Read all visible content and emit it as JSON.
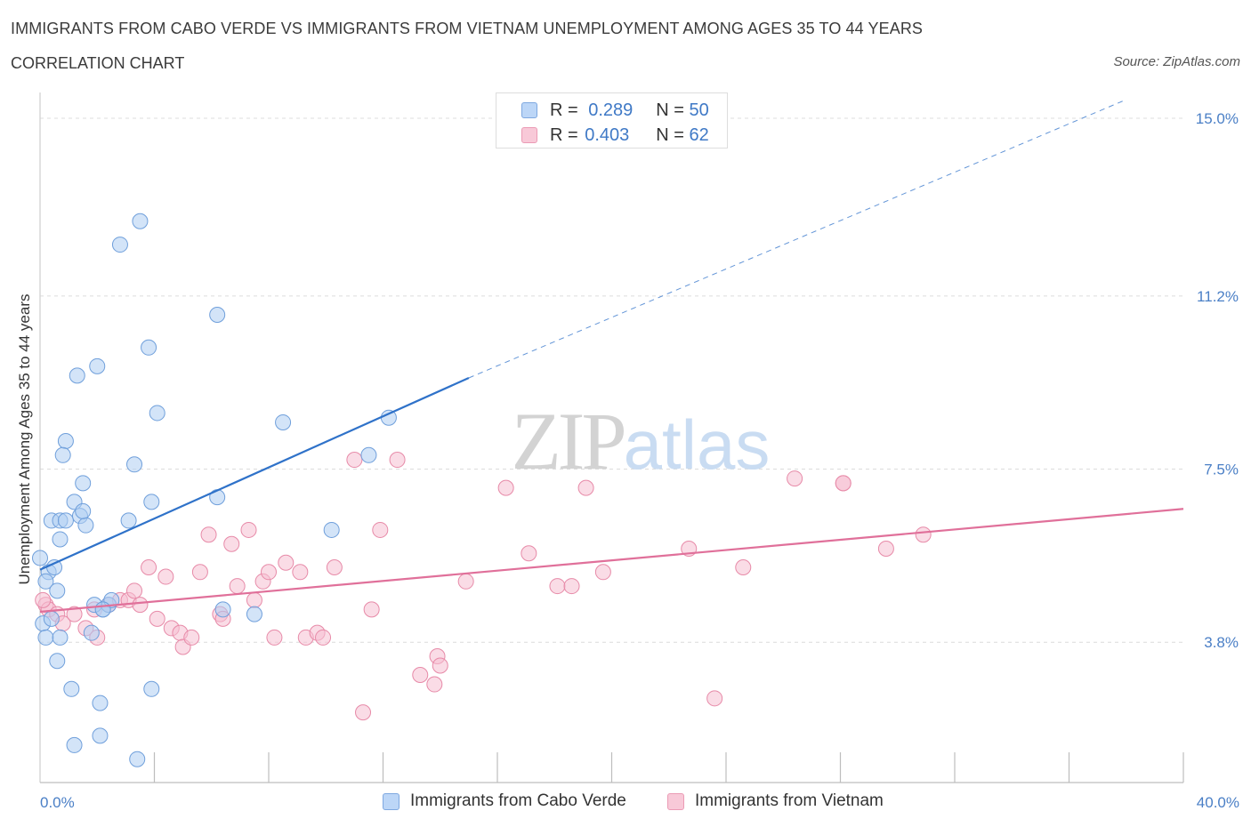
{
  "header": {
    "title": "IMMIGRANTS FROM CABO VERDE VS IMMIGRANTS FROM VIETNAM UNEMPLOYMENT AMONG AGES 35 TO 44 YEARS",
    "subtitle": "CORRELATION CHART",
    "source": "Source: ZipAtlas.com"
  },
  "watermark": "ZIPatlas",
  "legend_top": {
    "r_label": "R =",
    "n_label": "N =",
    "series": [
      {
        "r": "0.289",
        "n": "50"
      },
      {
        "r": "0.403",
        "n": "62"
      }
    ]
  },
  "colors": {
    "blue_fill": "#aecdf3",
    "blue_stroke": "#6f9fdb",
    "blue_line": "#2f72c9",
    "pink_fill": "#f6bfd1",
    "pink_stroke": "#e78aa8",
    "pink_line": "#e0709a",
    "tick": "#4a7fc6"
  },
  "chart_data": {
    "type": "scatter",
    "title": "IMMIGRANTS FROM CABO VERDE VS IMMIGRANTS FROM VIETNAM UNEMPLOYMENT AMONG AGES 35 TO 44 YEARS",
    "xlabel": "",
    "ylabel": "Unemployment Among Ages 35 to 44 years",
    "xlim": [
      0,
      40
    ],
    "ylim": [
      0.8,
      15.4
    ],
    "x_tick_labels": [
      "0.0%",
      "40.0%"
    ],
    "y_ticks": [
      3.8,
      7.5,
      11.2,
      15.0
    ],
    "y_tick_labels": [
      "3.8%",
      "7.5%",
      "11.2%",
      "15.0%"
    ],
    "grid": true,
    "legend_position": "bottom",
    "series": [
      {
        "name": "Immigrants from Cabo Verde",
        "color": "blue",
        "trend": {
          "x": [
            0,
            15
          ],
          "y": [
            5.35,
            9.45
          ],
          "dashed_extension_to": [
            38,
            15.4
          ]
        },
        "points": [
          [
            0.0,
            5.6
          ],
          [
            0.3,
            5.3
          ],
          [
            0.5,
            5.4
          ],
          [
            0.2,
            5.1
          ],
          [
            0.6,
            4.9
          ],
          [
            0.1,
            4.2
          ],
          [
            0.4,
            4.3
          ],
          [
            0.2,
            3.9
          ],
          [
            0.7,
            3.9
          ],
          [
            0.6,
            3.4
          ],
          [
            0.4,
            6.4
          ],
          [
            0.7,
            6.4
          ],
          [
            0.9,
            6.4
          ],
          [
            1.4,
            6.5
          ],
          [
            1.6,
            6.3
          ],
          [
            1.2,
            6.8
          ],
          [
            1.5,
            6.6
          ],
          [
            0.7,
            6.0
          ],
          [
            0.9,
            8.1
          ],
          [
            0.8,
            7.8
          ],
          [
            1.5,
            7.2
          ],
          [
            1.3,
            9.5
          ],
          [
            2.0,
            9.7
          ],
          [
            2.2,
            4.5
          ],
          [
            2.4,
            4.6
          ],
          [
            1.9,
            4.6
          ],
          [
            2.5,
            4.7
          ],
          [
            2.2,
            4.5
          ],
          [
            1.8,
            4.0
          ],
          [
            1.1,
            2.8
          ],
          [
            2.1,
            2.5
          ],
          [
            1.2,
            1.6
          ],
          [
            2.1,
            1.8
          ],
          [
            3.4,
            1.3
          ],
          [
            3.9,
            2.8
          ],
          [
            3.1,
            6.4
          ],
          [
            3.3,
            7.6
          ],
          [
            3.9,
            6.8
          ],
          [
            4.1,
            8.7
          ],
          [
            3.8,
            10.1
          ],
          [
            2.8,
            12.3
          ],
          [
            3.5,
            12.8
          ],
          [
            6.2,
            10.8
          ],
          [
            6.2,
            6.9
          ],
          [
            6.4,
            4.5
          ],
          [
            7.5,
            4.4
          ],
          [
            8.5,
            8.5
          ],
          [
            10.2,
            6.2
          ],
          [
            11.5,
            7.8
          ],
          [
            12.2,
            8.6
          ]
        ]
      },
      {
        "name": "Immigrants from Vietnam",
        "color": "pink",
        "trend": {
          "x": [
            0,
            40
          ],
          "y": [
            4.45,
            6.65
          ]
        },
        "points": [
          [
            0.2,
            4.6
          ],
          [
            0.3,
            4.5
          ],
          [
            0.6,
            4.4
          ],
          [
            0.8,
            4.2
          ],
          [
            1.2,
            4.4
          ],
          [
            1.6,
            4.1
          ],
          [
            1.9,
            4.5
          ],
          [
            2.0,
            3.9
          ],
          [
            2.4,
            4.6
          ],
          [
            2.8,
            4.7
          ],
          [
            3.1,
            4.7
          ],
          [
            3.5,
            4.6
          ],
          [
            3.3,
            4.9
          ],
          [
            3.8,
            5.4
          ],
          [
            4.1,
            4.3
          ],
          [
            4.4,
            5.2
          ],
          [
            4.6,
            4.1
          ],
          [
            4.9,
            4.0
          ],
          [
            5.0,
            3.7
          ],
          [
            5.3,
            3.9
          ],
          [
            5.6,
            5.3
          ],
          [
            5.9,
            6.1
          ],
          [
            6.3,
            4.4
          ],
          [
            6.4,
            4.3
          ],
          [
            6.7,
            5.9
          ],
          [
            6.9,
            5.0
          ],
          [
            7.3,
            6.2
          ],
          [
            7.5,
            4.7
          ],
          [
            7.8,
            5.1
          ],
          [
            8.0,
            5.3
          ],
          [
            8.2,
            3.9
          ],
          [
            8.6,
            5.5
          ],
          [
            9.1,
            5.3
          ],
          [
            9.3,
            3.9
          ],
          [
            9.7,
            4.0
          ],
          [
            9.9,
            3.9
          ],
          [
            10.3,
            5.4
          ],
          [
            11.0,
            7.7
          ],
          [
            11.3,
            2.3
          ],
          [
            11.6,
            4.5
          ],
          [
            11.9,
            6.2
          ],
          [
            12.5,
            7.7
          ],
          [
            13.3,
            3.1
          ],
          [
            13.8,
            2.9
          ],
          [
            13.9,
            3.5
          ],
          [
            14.0,
            3.3
          ],
          [
            14.9,
            5.1
          ],
          [
            16.3,
            7.1
          ],
          [
            17.1,
            5.7
          ],
          [
            18.1,
            5.0
          ],
          [
            18.6,
            5.0
          ],
          [
            19.1,
            7.1
          ],
          [
            19.7,
            5.3
          ],
          [
            22.7,
            5.8
          ],
          [
            23.6,
            2.6
          ],
          [
            24.6,
            5.4
          ],
          [
            26.4,
            7.3
          ],
          [
            28.1,
            7.2
          ],
          [
            28.1,
            7.2
          ],
          [
            29.6,
            5.8
          ],
          [
            30.9,
            6.1
          ],
          [
            0.1,
            4.7
          ]
        ]
      }
    ]
  },
  "bottom_legend": {
    "labels": [
      "Immigrants from Cabo Verde",
      "Immigrants from Vietnam"
    ]
  }
}
